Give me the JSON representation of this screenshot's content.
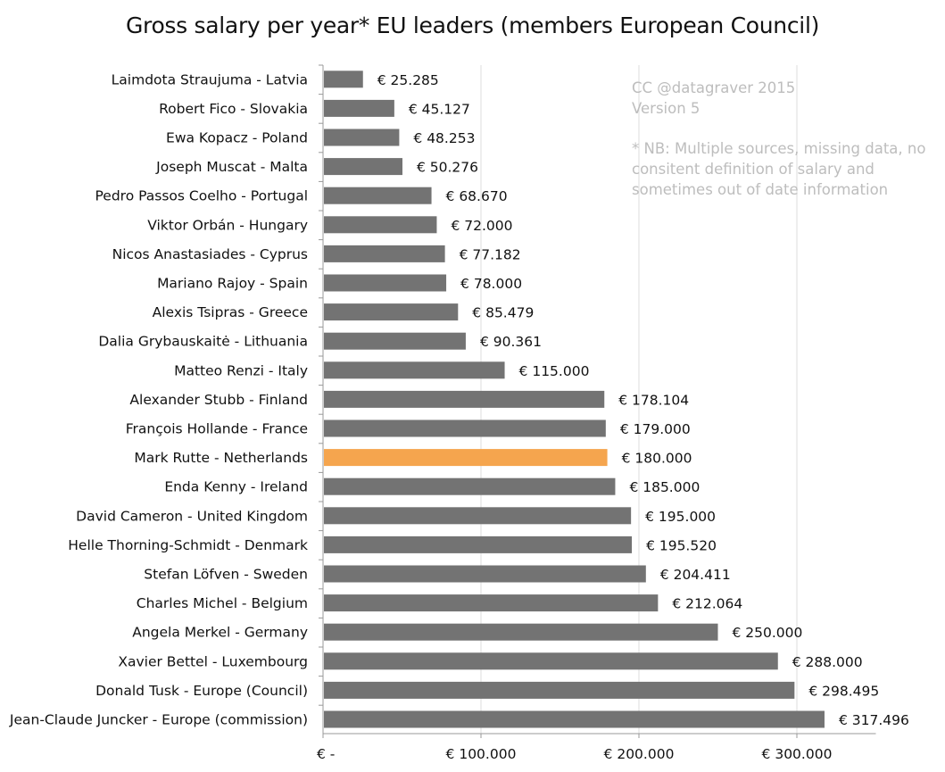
{
  "chart_data": {
    "type": "bar",
    "orientation": "horizontal",
    "title": "Gross salary per year* EU leaders (members European Council)",
    "xlabel": "",
    "ylabel": "",
    "xlim": [
      0,
      350000
    ],
    "x_ticks": [
      0,
      100000,
      200000,
      300000
    ],
    "x_tick_labels": [
      "€ -",
      "€ 100.000",
      "€ 200.000",
      "€ 300.000"
    ],
    "grid": "vertical",
    "categories": [
      "Laimdota Straujuma - Latvia",
      "Robert Fico - Slovakia",
      "Ewa Kopacz - Poland",
      "Joseph Muscat - Malta",
      "Pedro Passos Coelho - Portugal",
      "Viktor Orbán - Hungary",
      "Nicos Anastasiades - Cyprus",
      "Mariano Rajoy - Spain",
      "Alexis Tsipras - Greece",
      "Dalia Grybauskaitė - Lithuania",
      "Matteo Renzi - Italy",
      "Alexander Stubb - Finland",
      "François Hollande - France",
      "Mark Rutte - Netherlands",
      "Enda Kenny - Ireland",
      "David Cameron - United Kingdom",
      "Helle Thorning-Schmidt - Denmark",
      "Stefan Löfven - Sweden",
      "Charles Michel - Belgium",
      "Angela Merkel - Germany",
      "Xavier Bettel - Luxembourg",
      "Donald Tusk - Europe (Council)",
      "Jean-Claude Juncker - Europe (commission)"
    ],
    "values": [
      25285,
      45127,
      48253,
      50276,
      68670,
      72000,
      77182,
      78000,
      85479,
      90361,
      115000,
      178104,
      179000,
      180000,
      185000,
      195000,
      195520,
      204411,
      212064,
      250000,
      288000,
      298495,
      317496
    ],
    "value_labels": [
      "€ 25.285",
      "€ 45.127",
      "€ 48.253",
      "€ 50.276",
      "€ 68.670",
      "€ 72.000",
      "€ 77.182",
      "€ 78.000",
      "€ 85.479",
      "€ 90.361",
      "€ 115.000",
      "€ 178.104",
      "€ 179.000",
      "€ 180.000",
      "€ 185.000",
      "€ 195.000",
      "€ 195.520",
      "€ 204.411",
      "€ 212.064",
      "€ 250.000",
      "€ 288.000",
      "€ 298.495",
      "€ 317.496"
    ],
    "highlight": "Mark Rutte - Netherlands",
    "colors": {
      "bar": "#737373",
      "highlight": "#f5a54e",
      "grid": "#dddddd",
      "note": "#bdbdbd"
    },
    "annotations": {
      "credit": [
        "CC @datagraver 2015",
        "Version 5"
      ],
      "note": [
        "* NB: Multiple sources, missing data, no",
        "consitent definition of salary and",
        "sometimes out of date information"
      ]
    }
  }
}
